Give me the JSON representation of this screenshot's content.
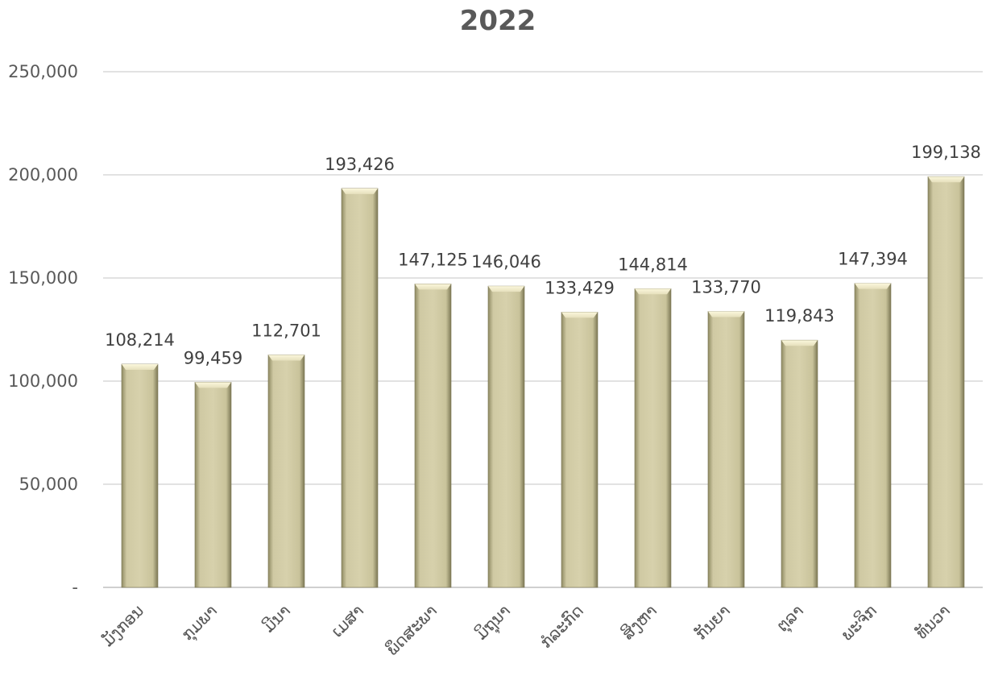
{
  "chart_data": {
    "type": "bar",
    "title": "2022",
    "categories": [
      "ມັງກອນ",
      "ກຸມພາ",
      "ມີນາ",
      "ເມສາ",
      "ພຶດສະພາ",
      "ມິຖຸນາ",
      "ກໍລະກົດ",
      "ສິງຫາ",
      "ກັນຍາ",
      "ຕຸລາ",
      "ພະຈິກ",
      "ທັນວາ"
    ],
    "values": [
      108214,
      99459,
      112701,
      193426,
      147125,
      146046,
      133429,
      144814,
      133770,
      119843,
      147394,
      199138
    ],
    "data_labels": [
      "108,214",
      "99,459",
      "112,701",
      "193,426",
      "147,125",
      "146,046",
      "133,429",
      "144,814",
      "133,770",
      "119,843",
      "147,394",
      "199,138"
    ],
    "yticks": [
      0,
      50000,
      100000,
      150000,
      200000,
      250000
    ],
    "ytick_labels": [
      "-",
      "50,000",
      "100,000",
      "150,000",
      "200,000",
      "250,000"
    ],
    "ylim": [
      0,
      250000
    ],
    "xlabel": "",
    "ylabel": "",
    "grid": true,
    "legend": "none",
    "bar_color": "#cdc7a0"
  }
}
